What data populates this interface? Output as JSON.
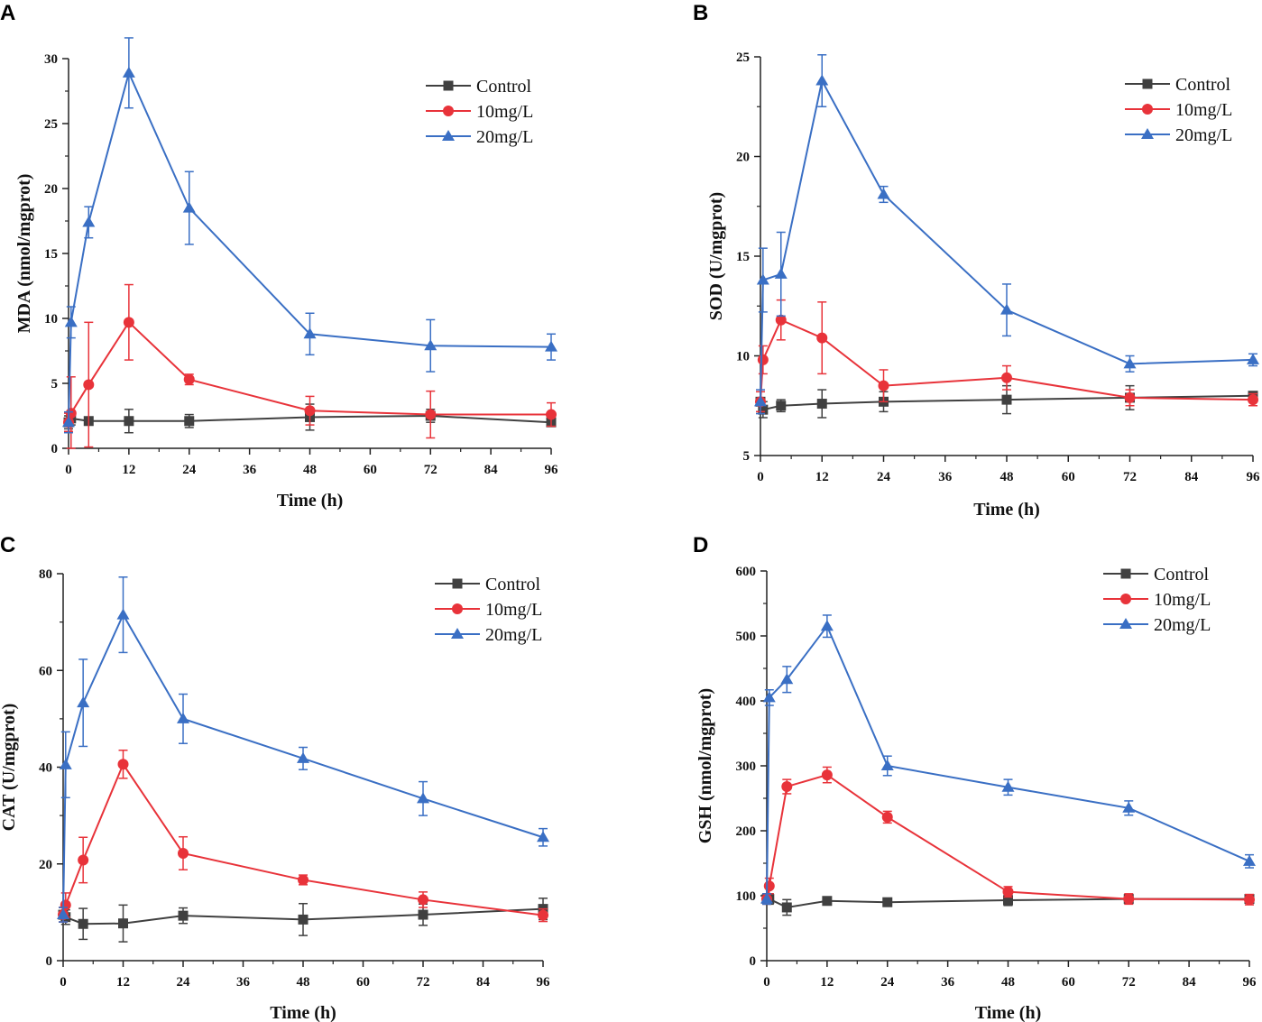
{
  "colors": {
    "Control": "#404040",
    "10mg/L": "#e8333a",
    "20mg/L": "#3a6fc4"
  },
  "markers": {
    "Control": "square",
    "10mg/L": "circle",
    "20mg/L": "triangle"
  },
  "chart_data": [
    {
      "panel": "A",
      "type": "line",
      "xlabel": "Time (h)",
      "ylabel": "MDA (nmol/mgprot)",
      "xlim": [
        0,
        96
      ],
      "ylim": [
        0,
        30
      ],
      "xticks": [
        0,
        12,
        24,
        36,
        48,
        60,
        72,
        84,
        96
      ],
      "yticks": [
        0,
        5,
        10,
        15,
        20,
        25,
        30
      ],
      "legend": "top-right",
      "grid": false,
      "x": [
        0,
        0.5,
        4,
        12,
        24,
        48,
        72,
        96
      ],
      "series": [
        {
          "name": "Control",
          "values": [
            2.0,
            2.3,
            2.1,
            2.1,
            2.1,
            2.4,
            2.5,
            2.0
          ],
          "errors": [
            0.5,
            0.5,
            0.3,
            0.9,
            0.5,
            1.0,
            0.5,
            0.2
          ]
        },
        {
          "name": "10mg/L",
          "values": [
            2.0,
            2.7,
            4.9,
            9.7,
            5.3,
            2.9,
            2.6,
            2.6
          ],
          "errors": [
            0.7,
            2.8,
            4.8,
            2.9,
            0.4,
            1.1,
            1.8,
            0.9
          ]
        },
        {
          "name": "20mg/L",
          "values": [
            2.0,
            9.7,
            17.4,
            28.9,
            18.5,
            8.8,
            7.9,
            7.8
          ],
          "errors": [
            0.8,
            1.2,
            1.2,
            2.7,
            2.8,
            1.6,
            2.0,
            1.0
          ]
        }
      ]
    },
    {
      "panel": "B",
      "type": "line",
      "xlabel": "Time (h)",
      "ylabel": "SOD (U/mgprot)",
      "xlim": [
        0,
        96
      ],
      "ylim": [
        5,
        25
      ],
      "xticks": [
        0,
        12,
        24,
        36,
        48,
        60,
        72,
        84,
        96
      ],
      "yticks": [
        5,
        10,
        15,
        20,
        25
      ],
      "legend": "top-right",
      "grid": false,
      "x": [
        0,
        0.5,
        4,
        12,
        24,
        48,
        72,
        96
      ],
      "series": [
        {
          "name": "Control",
          "values": [
            7.7,
            7.3,
            7.5,
            7.6,
            7.7,
            7.8,
            7.9,
            8.0
          ],
          "errors": [
            0.5,
            0.4,
            0.3,
            0.7,
            0.5,
            0.7,
            0.6,
            0.2
          ]
        },
        {
          "name": "10mg/L",
          "values": [
            7.7,
            9.8,
            11.8,
            10.9,
            8.5,
            8.9,
            7.9,
            7.8
          ],
          "errors": [
            0.5,
            0.7,
            1.0,
            1.8,
            0.8,
            0.6,
            0.4,
            0.3
          ]
        },
        {
          "name": "20mg/L",
          "values": [
            7.7,
            13.8,
            14.1,
            23.8,
            18.1,
            12.3,
            9.6,
            9.8
          ],
          "errors": [
            0.6,
            1.6,
            2.1,
            1.3,
            0.4,
            1.3,
            0.4,
            0.3
          ]
        }
      ]
    },
    {
      "panel": "C",
      "type": "line",
      "xlabel": "Time (h)",
      "ylabel": "CAT (U/mgprot)",
      "xlim": [
        0,
        96
      ],
      "ylim": [
        0,
        80
      ],
      "xticks": [
        0,
        12,
        24,
        36,
        48,
        60,
        72,
        84,
        96
      ],
      "yticks": [
        0,
        20,
        40,
        60,
        80
      ],
      "legend": "top-right",
      "grid": false,
      "x": [
        0,
        0.5,
        4,
        12,
        24,
        48,
        72,
        96
      ],
      "series": [
        {
          "name": "Control",
          "values": [
            9.5,
            9.0,
            7.6,
            7.7,
            9.3,
            8.5,
            9.5,
            10.7
          ],
          "errors": [
            1.5,
            1.5,
            3.2,
            3.8,
            1.6,
            3.3,
            2.2,
            2.2
          ]
        },
        {
          "name": "10mg/L",
          "values": [
            9.5,
            11.5,
            20.8,
            40.6,
            22.2,
            16.7,
            12.6,
            9.4
          ],
          "errors": [
            1.5,
            2.5,
            4.7,
            2.9,
            3.4,
            1.0,
            1.6,
            1.3
          ]
        },
        {
          "name": "20mg/L",
          "values": [
            9.5,
            40.5,
            53.3,
            71.5,
            50.0,
            41.8,
            33.5,
            25.5
          ],
          "errors": [
            1.5,
            6.8,
            9.0,
            7.8,
            5.1,
            2.3,
            3.5,
            1.8
          ]
        }
      ]
    },
    {
      "panel": "D",
      "type": "line",
      "xlabel": "Time (h)",
      "ylabel": "GSH (nmol/mgprot)",
      "xlim": [
        0,
        96
      ],
      "ylim": [
        0,
        600
      ],
      "xticks": [
        0,
        12,
        24,
        36,
        48,
        60,
        72,
        84,
        96
      ],
      "yticks": [
        0,
        100,
        200,
        300,
        400,
        500,
        600
      ],
      "legend": "top-right",
      "grid": false,
      "x": [
        0,
        0.5,
        4,
        12,
        24,
        48,
        72,
        96
      ],
      "series": [
        {
          "name": "Control",
          "values": [
            95,
            95,
            82,
            92,
            90,
            93,
            95,
            95
          ],
          "errors": [
            8,
            8,
            12,
            6,
            4,
            8,
            6,
            6
          ]
        },
        {
          "name": "10mg/L",
          "values": [
            95,
            115,
            268,
            286,
            221,
            106,
            95,
            94
          ],
          "errors": [
            8,
            12,
            11,
            12,
            9,
            8,
            8,
            8
          ]
        },
        {
          "name": "20mg/L",
          "values": [
            95,
            405,
            433,
            515,
            300,
            267,
            235,
            153
          ],
          "errors": [
            8,
            12,
            20,
            17,
            15,
            12,
            11,
            10
          ]
        }
      ]
    }
  ]
}
